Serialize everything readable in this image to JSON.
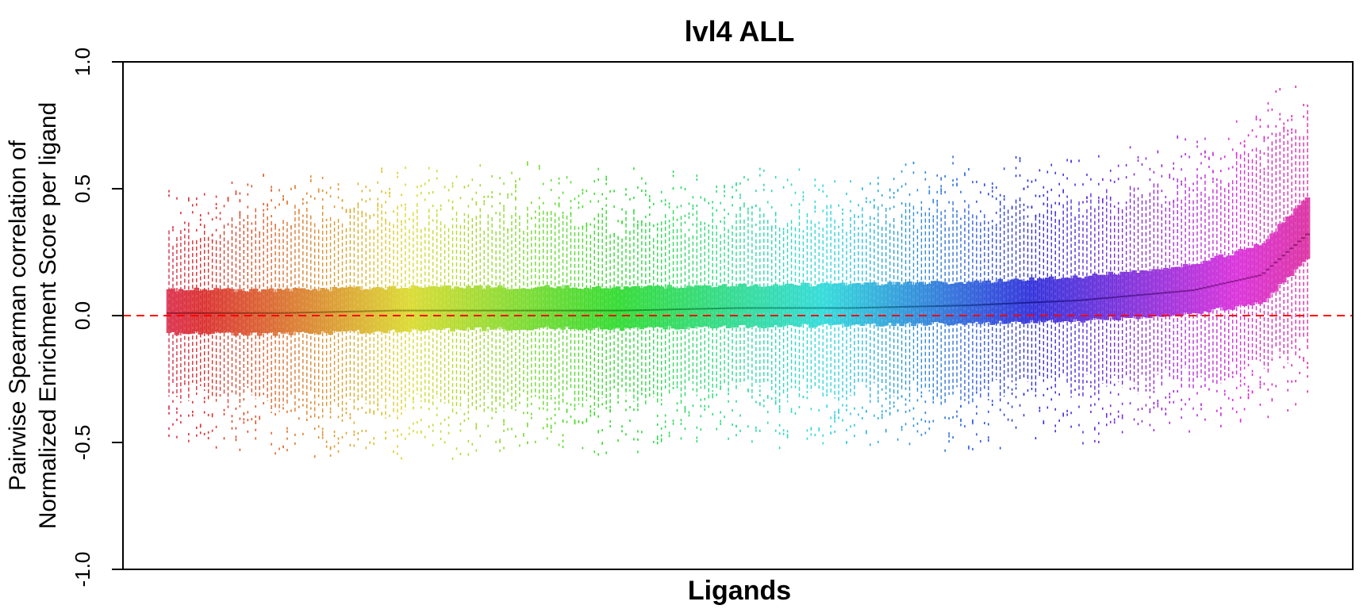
{
  "chart_data": {
    "type": "boxplot",
    "title": "lvl4 ALL",
    "xlabel": "Ligands",
    "ylabel_lines": [
      "Pairwise Spearman correlation of",
      "Normalized Enrichment Score per ligand"
    ],
    "ylim": [
      -1.0,
      1.0
    ],
    "y_ticks": [
      -1.0,
      -0.5,
      0.0,
      0.5,
      1.0
    ],
    "y_tick_labels": [
      "-1.0",
      "-0.5",
      "0.0",
      "0.5",
      "1.0"
    ],
    "x_ticks": "none",
    "grid": false,
    "reference_line": {
      "y": 0.0,
      "style": "dashed",
      "color": "#ff0000"
    },
    "n_ligands": 290,
    "color_scheme": "rainbow hue gradient (red → orange → olive → green → teal → blue → purple → pink)",
    "sorted_by": "median ascending",
    "median_profile": [
      {
        "rank_fraction": 0.0,
        "median": 0.01,
        "q1": -0.07,
        "q3": 0.1,
        "whisker_low": -0.3,
        "whisker_high": 0.32
      },
      {
        "rank_fraction": 0.1,
        "median": 0.01,
        "q1": -0.07,
        "q3": 0.1,
        "whisker_low": -0.35,
        "whisker_high": 0.38
      },
      {
        "rank_fraction": 0.2,
        "median": 0.02,
        "q1": -0.06,
        "q3": 0.11,
        "whisker_low": -0.36,
        "whisker_high": 0.4
      },
      {
        "rank_fraction": 0.3,
        "median": 0.02,
        "q1": -0.05,
        "q3": 0.11,
        "whisker_low": -0.33,
        "whisker_high": 0.38
      },
      {
        "rank_fraction": 0.4,
        "median": 0.02,
        "q1": -0.05,
        "q3": 0.11,
        "whisker_low": -0.32,
        "whisker_high": 0.36
      },
      {
        "rank_fraction": 0.5,
        "median": 0.03,
        "q1": -0.04,
        "q3": 0.12,
        "whisker_low": -0.3,
        "whisker_high": 0.37
      },
      {
        "rank_fraction": 0.6,
        "median": 0.03,
        "q1": -0.04,
        "q3": 0.12,
        "whisker_low": -0.31,
        "whisker_high": 0.38
      },
      {
        "rank_fraction": 0.7,
        "median": 0.04,
        "q1": -0.03,
        "q3": 0.13,
        "whisker_low": -0.3,
        "whisker_high": 0.4
      },
      {
        "rank_fraction": 0.8,
        "median": 0.06,
        "q1": -0.02,
        "q3": 0.15,
        "whisker_low": -0.28,
        "whisker_high": 0.42
      },
      {
        "rank_fraction": 0.9,
        "median": 0.1,
        "q1": 0.01,
        "q3": 0.2,
        "whisker_low": -0.25,
        "whisker_high": 0.5
      },
      {
        "rank_fraction": 0.96,
        "median": 0.16,
        "q1": 0.05,
        "q3": 0.28,
        "whisker_low": -0.2,
        "whisker_high": 0.62
      },
      {
        "rank_fraction": 1.0,
        "median": 0.32,
        "q1": 0.22,
        "q3": 0.46,
        "whisker_low": -0.1,
        "whisker_high": 0.78
      }
    ]
  }
}
